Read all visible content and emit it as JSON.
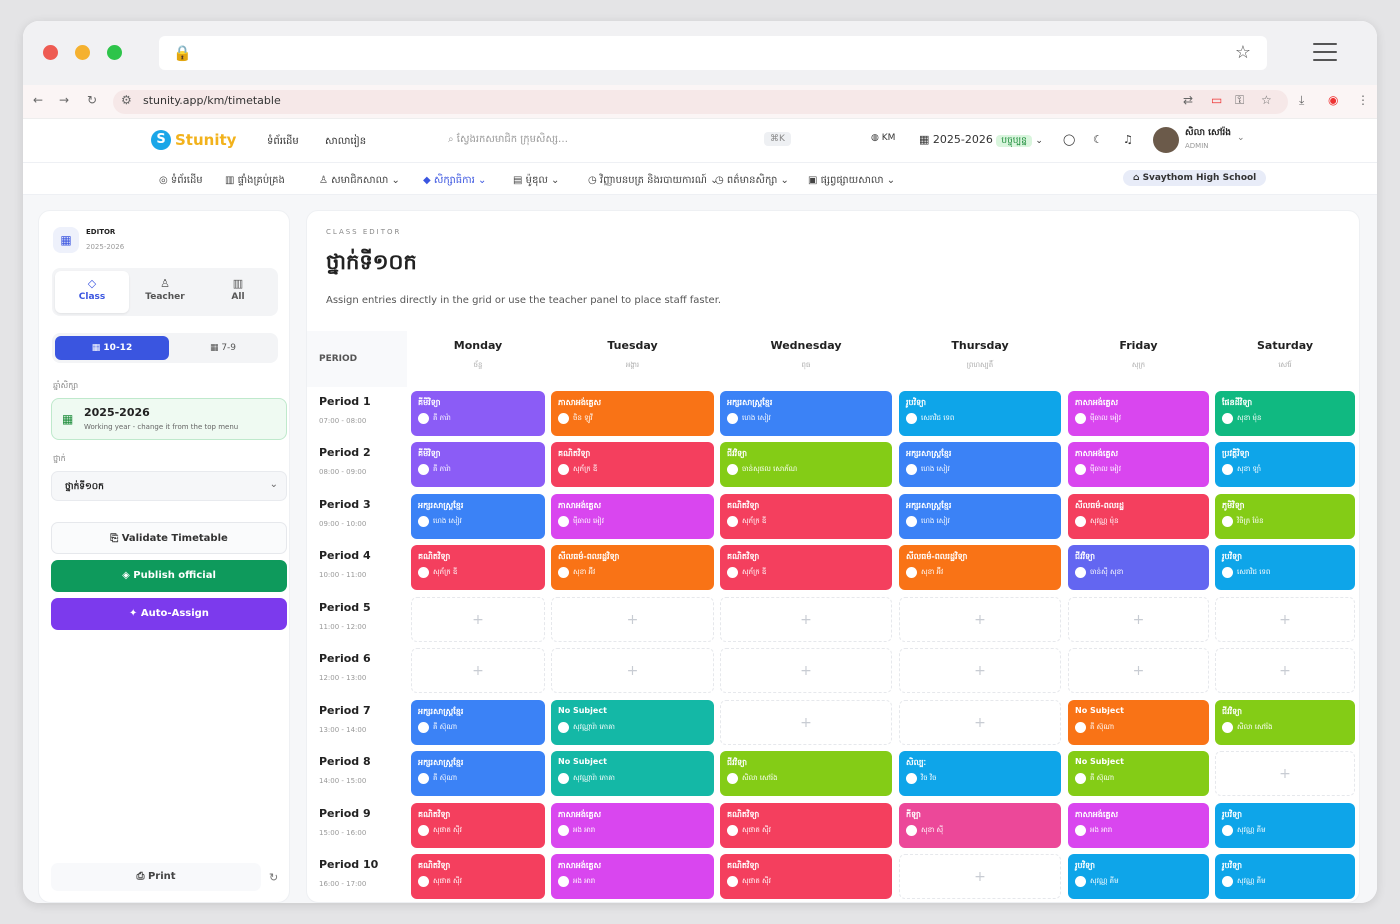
{
  "browser": {
    "url": "stunity.app/km/timetable"
  },
  "header": {
    "logo": "Stunity",
    "nav1": "ទំព័រដើម",
    "nav2": "សាលារៀន",
    "search_placeholder": "ស្វែងរកសមាជិក ក្រុមសិស្ស…",
    "shortcut": "⌘K",
    "lang": "KM",
    "year": "2025-2026",
    "year_badge": "បច្ចុប្បន្ន",
    "user_name": "សិលា សៅរ៉ង",
    "user_role": "ADMIN"
  },
  "nav": {
    "items": [
      "ទំព័រដើម",
      "ផ្ទាំងគ្រប់គ្រង",
      "សមាជិកសាលា",
      "សិក្សាធិការ",
      "ម៉ូឌុល",
      "វិញ្ញាបនបត្រ និងរបាយការណ៍",
      "ពត៌មានសិក្សា",
      "ផ្សព្វផ្សាយសាលា"
    ],
    "school": "Svaythom High School"
  },
  "sidebar": {
    "editor": "EDITOR",
    "year": "2025-2026",
    "tabs": [
      "Class",
      "Teacher",
      "All"
    ],
    "grades": [
      "10-12",
      "7-9"
    ],
    "year_label": "ឆ្នាំសិក្សា",
    "year_value": "2025-2026",
    "year_note": "Working year - change it from the top menu",
    "class_label": "ថ្នាក់",
    "class_value": "ថ្នាក់ទី១០ក",
    "validate": "Validate Timetable",
    "publish": "Publish official",
    "auto": "Auto-Assign",
    "print": "Print"
  },
  "main": {
    "kicker": "CLASS EDITOR",
    "title": "ថ្នាក់ទី១០ក",
    "desc": "Assign entries directly in the grid or use the teacher panel to place staff faster.",
    "period_head": "PERIOD"
  },
  "days": [
    {
      "en": "Monday",
      "km": "ច័ន្ទ"
    },
    {
      "en": "Tuesday",
      "km": "អង្គារ"
    },
    {
      "en": "Wednesday",
      "km": "ពុធ"
    },
    {
      "en": "Thursday",
      "km": "ព្រហស្បតិ៍"
    },
    {
      "en": "Friday",
      "km": "សុក្រ"
    },
    {
      "en": "Saturday",
      "km": "សៅរ៍"
    }
  ],
  "periods": [
    {
      "n": "Period 1",
      "t": "07:00 - 08:00"
    },
    {
      "n": "Period 2",
      "t": "08:00 - 09:00"
    },
    {
      "n": "Period 3",
      "t": "09:00 - 10:00"
    },
    {
      "n": "Period 4",
      "t": "10:00 - 11:00"
    },
    {
      "n": "Period 5",
      "t": "11:00 - 12:00"
    },
    {
      "n": "Period 6",
      "t": "12:00 - 13:00"
    },
    {
      "n": "Period 7",
      "t": "13:00 - 14:00"
    },
    {
      "n": "Period 8",
      "t": "14:00 - 15:00"
    },
    {
      "n": "Period 9",
      "t": "15:00 - 16:00"
    },
    {
      "n": "Period 10",
      "t": "16:00 - 17:00"
    }
  ],
  "colors": {
    "purple": "#8b5cf6",
    "orange": "#f97316",
    "blue": "#3b82f6",
    "sky": "#0ea5e9",
    "magenta": "#d946ef",
    "green": "#10b981",
    "red": "#f43f5e",
    "lime": "#84cc16",
    "teal": "#14b8a6",
    "indigo": "#6366f1",
    "pink": "#ec4899",
    "brand": "#3a55e0",
    "publish": "#0e9a5c",
    "auto": "#7c3aed"
  },
  "grid": [
    [
      {
        "s": "គីមីវិទ្យា",
        "t": "គី ភារ៉ា",
        "c": "purple"
      },
      {
        "s": "ភាសាអង់គ្លេស",
        "t": "ចិន ឡូវី",
        "c": "orange"
      },
      {
        "s": "អក្សរសាស្ត្រខ្មែរ",
        "t": "ហេង សៀវ",
        "c": "blue"
      },
      {
        "s": "រូបវិទ្យា",
        "t": "សេរាវិជ ទេព",
        "c": "sky"
      },
      {
        "s": "ភាសាអង់គ្លេស",
        "t": "ម៉ីឆាល អៀវ",
        "c": "magenta"
      },
      {
        "s": "ផែនដីវិទ្យា",
        "t": "សុខា ម៉ុន",
        "c": "green"
      }
    ],
    [
      {
        "s": "គីមីវិទ្យា",
        "t": "គី ភារ៉ា",
        "c": "purple"
      },
      {
        "s": "គណិតវិទ្យា",
        "t": "សុភ័ក្រ ឌី",
        "c": "red"
      },
      {
        "s": "ជីវវិទ្យា",
        "t": "ចាន់សុផល សោភ័ណ",
        "c": "lime"
      },
      {
        "s": "អក្សរសាស្ត្រខ្មែរ",
        "t": "ហេង សៀវ",
        "c": "blue"
      },
      {
        "s": "ភាសាអង់គ្លេស",
        "t": "ម៉ីឆាល អៀវ",
        "c": "magenta"
      },
      {
        "s": "ប្រវត្តិវិទ្យា",
        "t": "សុខា ឡាំ",
        "c": "sky"
      }
    ],
    [
      {
        "s": "អក្សរសាស្ត្រខ្មែរ",
        "t": "ហេង សៀវ",
        "c": "blue"
      },
      {
        "s": "ភាសាអង់គ្លេស",
        "t": "ម៉ីឆាល អៀវ",
        "c": "magenta"
      },
      {
        "s": "គណិតវិទ្យា",
        "t": "សុភ័ក្រ ឌី",
        "c": "red"
      },
      {
        "s": "អក្សរសាស្ត្រខ្មែរ",
        "t": "ហេង សៀវ",
        "c": "blue"
      },
      {
        "s": "សីលធម៌-ពលរដ្ឋ",
        "t": "សុវណ្ណ ម៉ុន",
        "c": "red"
      },
      {
        "s": "ភូមិវិទ្យា",
        "t": "វិចិត្រ ម៉ែន",
        "c": "lime"
      }
    ],
    [
      {
        "s": "គណិតវិទ្យា",
        "t": "សុភ័ក្រ ឌី",
        "c": "red"
      },
      {
        "s": "សីលធម៌-ពលរដ្ឋវិទ្យា",
        "t": "សុខា អ៊ីវ",
        "c": "orange"
      },
      {
        "s": "គណិតវិទ្យា",
        "t": "សុភ័ក្រ ឌី",
        "c": "red"
      },
      {
        "s": "សីលធម៌-ពលរដ្ឋវិទ្យា",
        "t": "សុខា អ៊ីវ",
        "c": "orange"
      },
      {
        "s": "ជីវវិទ្យា",
        "t": "ចាន់ស៊ី សុខា",
        "c": "indigo"
      },
      {
        "s": "រូបវិទ្យា",
        "t": "សេរាវិជ ទេព",
        "c": "sky"
      }
    ],
    [
      null,
      null,
      null,
      null,
      null,
      null
    ],
    [
      null,
      null,
      null,
      null,
      null,
      null
    ],
    [
      {
        "s": "អក្សរសាស្ត្រខ្មែរ",
        "t": "គី ស៊ុណា",
        "c": "blue"
      },
      {
        "s": "No Subject",
        "t": "សុវណ្ណារ៉ា ភោគា",
        "c": "teal"
      },
      null,
      null,
      {
        "s": "No Subject",
        "t": "គី ស៊ុណា",
        "c": "orange"
      },
      {
        "s": "ជីវវិទ្យា",
        "t": "សិលា សៅរ៉ង",
        "c": "lime"
      }
    ],
    [
      {
        "s": "អក្សរសាស្ត្រខ្មែរ",
        "t": "គី ស៊ុណា",
        "c": "blue"
      },
      {
        "s": "No Subject",
        "t": "សុវណ្ណារ៉ា ភោគា",
        "c": "teal"
      },
      {
        "s": "ជីវវិទ្យា",
        "t": "សិលា សៅរ៉ង",
        "c": "lime"
      },
      {
        "s": "សិល្បៈ",
        "t": "វិច វិច",
        "c": "sky"
      },
      {
        "s": "No Subject",
        "t": "គី ស៊ុណា",
        "c": "lime"
      },
      null
    ],
    [
      {
        "s": "គណិតវិទ្យា",
        "t": "សុផាត សុីវ",
        "c": "red"
      },
      {
        "s": "ភាសាអង់គ្លេស",
        "t": "អង អារា",
        "c": "magenta"
      },
      {
        "s": "គណិតវិទ្យា",
        "t": "សុផាត សុីវ",
        "c": "red"
      },
      {
        "s": "កីឡា",
        "t": "សុខា ស៊ី",
        "c": "pink"
      },
      {
        "s": "ភាសាអង់គ្លេស",
        "t": "អង អារា",
        "c": "magenta"
      },
      {
        "s": "រូបវិទ្យា",
        "t": "សុវណ្ណ គីម",
        "c": "sky"
      }
    ],
    [
      {
        "s": "គណិតវិទ្យា",
        "t": "សុផាត សុីវ",
        "c": "red"
      },
      {
        "s": "ភាសាអង់គ្លេស",
        "t": "អង អារា",
        "c": "magenta"
      },
      {
        "s": "គណិតវិទ្យា",
        "t": "សុផាត សុីវ",
        "c": "red"
      },
      null,
      {
        "s": "រូបវិទ្យា",
        "t": "សុវណ្ណ គីម",
        "c": "sky"
      },
      {
        "s": "រូបវិទ្យា",
        "t": "សុវណ្ណ គីម",
        "c": "sky"
      }
    ]
  ]
}
